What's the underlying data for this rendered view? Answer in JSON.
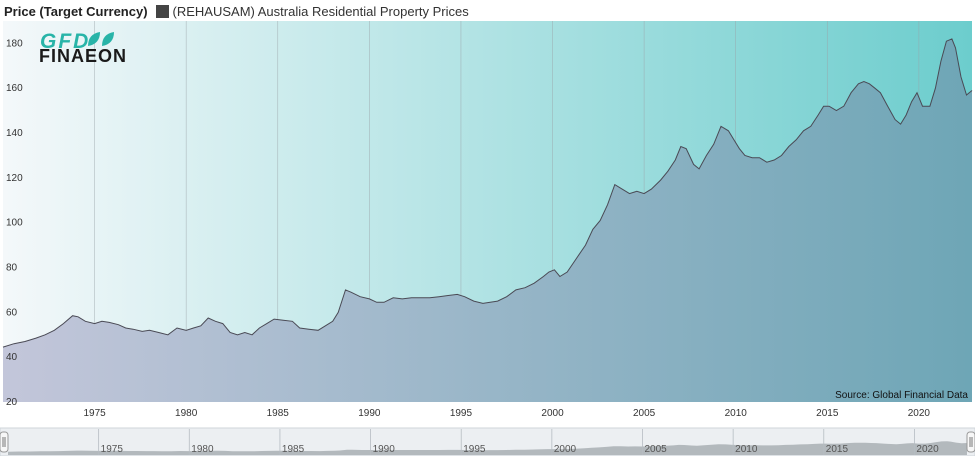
{
  "legend": {
    "y_title": "Price (Target Currency)",
    "series_name": "(REHAUSAM) Australia Residential Property Prices"
  },
  "logo": {
    "line1": "GFD",
    "line2": "FINAEON"
  },
  "source": "Source: Global Financial Data",
  "colors": {
    "bg_left": "#f4f8fa",
    "bg_right": "#6ccdcd",
    "area_left": "#c3c6da",
    "area_right": "#6ea6b6",
    "line": "#4a4a55",
    "logo_gfd": "#28b4a8",
    "logo_text": "#1a1a1a"
  },
  "chart_data": {
    "type": "area",
    "title": "",
    "xlabel": "",
    "ylabel": "Price (Target Currency)",
    "xlim": [
      1970,
      2022.9
    ],
    "ylim": [
      20,
      190
    ],
    "y_ticks": [
      20,
      40,
      60,
      80,
      100,
      120,
      140,
      160,
      180
    ],
    "x_ticks": [
      1975,
      1980,
      1985,
      1990,
      1995,
      2000,
      2005,
      2010,
      2015,
      2020
    ],
    "grid": "vertical",
    "legend_position": "top-left",
    "series": [
      {
        "name": "(REHAUSAM) Australia Residential Property Prices",
        "x": [
          1970.0,
          1970.6,
          1971.2,
          1971.8,
          1972.3,
          1972.8,
          1973.3,
          1973.8,
          1974.1,
          1974.5,
          1975.0,
          1975.4,
          1975.8,
          1976.3,
          1976.7,
          1977.1,
          1977.6,
          1978.0,
          1978.5,
          1979.0,
          1979.5,
          1980.0,
          1980.4,
          1980.8,
          1981.2,
          1981.6,
          1982.0,
          1982.4,
          1982.8,
          1983.2,
          1983.6,
          1984.0,
          1984.4,
          1984.8,
          1985.3,
          1985.8,
          1986.2,
          1986.7,
          1987.2,
          1987.6,
          1988.0,
          1988.3,
          1988.7,
          1989.0,
          1989.5,
          1990.0,
          1990.4,
          1990.8,
          1991.3,
          1991.8,
          1992.3,
          1992.8,
          1993.3,
          1993.8,
          1994.3,
          1994.8,
          1995.2,
          1995.7,
          1996.2,
          1996.6,
          1997.0,
          1997.5,
          1998.0,
          1998.5,
          1999.0,
          1999.5,
          1999.8,
          2000.1,
          2000.4,
          2000.8,
          2001.3,
          2001.8,
          2002.2,
          2002.6,
          2003.0,
          2003.4,
          2003.8,
          2004.2,
          2004.6,
          2005.0,
          2005.4,
          2005.9,
          2006.3,
          2006.7,
          2007.0,
          2007.3,
          2007.7,
          2008.0,
          2008.4,
          2008.8,
          2009.2,
          2009.6,
          2009.9,
          2010.2,
          2010.5,
          2010.9,
          2011.3,
          2011.7,
          2012.1,
          2012.5,
          2012.9,
          2013.3,
          2013.7,
          2014.1,
          2014.5,
          2014.8,
          2015.1,
          2015.5,
          2015.9,
          2016.3,
          2016.7,
          2017.0,
          2017.3,
          2017.6,
          2017.9,
          2018.3,
          2018.7,
          2019.0,
          2019.3,
          2019.6,
          2019.9,
          2020.2,
          2020.6,
          2020.9,
          2021.2,
          2021.5,
          2021.8,
          2022.0,
          2022.3,
          2022.6,
          2022.9
        ],
        "values": [
          44.5,
          46,
          47,
          48.5,
          50,
          52,
          55,
          58.5,
          58,
          56,
          55,
          56,
          55.5,
          54.5,
          53,
          52.5,
          51.5,
          52,
          51,
          50,
          53,
          52,
          53,
          54,
          57.5,
          56,
          55,
          51,
          50,
          51,
          50,
          53,
          55,
          57,
          56.5,
          56,
          53,
          52.5,
          52,
          54,
          56,
          60,
          70,
          69,
          67,
          66,
          64.5,
          64.5,
          66.5,
          66,
          66.5,
          66.5,
          66.5,
          67,
          67.5,
          68,
          67,
          65,
          64,
          64.5,
          65,
          67,
          70,
          71,
          73,
          76,
          78,
          79,
          76,
          78,
          84,
          90,
          97,
          101,
          108,
          117,
          115,
          113,
          114,
          113,
          115,
          119,
          123,
          128,
          134,
          133,
          126,
          124,
          130,
          135,
          143,
          141,
          137,
          133,
          130,
          129,
          129,
          127,
          128,
          130,
          134,
          137,
          141,
          143,
          148,
          152,
          152,
          150,
          152,
          158,
          162,
          163,
          162,
          160,
          158,
          152,
          146,
          144,
          148,
          154,
          158,
          152,
          152,
          160,
          172,
          181,
          182,
          178,
          165,
          157,
          159
        ]
      }
    ]
  },
  "navigator": {
    "x_ticks": [
      1975,
      1980,
      1985,
      1990,
      1995,
      2000,
      2005,
      2010,
      2015,
      2020
    ]
  }
}
